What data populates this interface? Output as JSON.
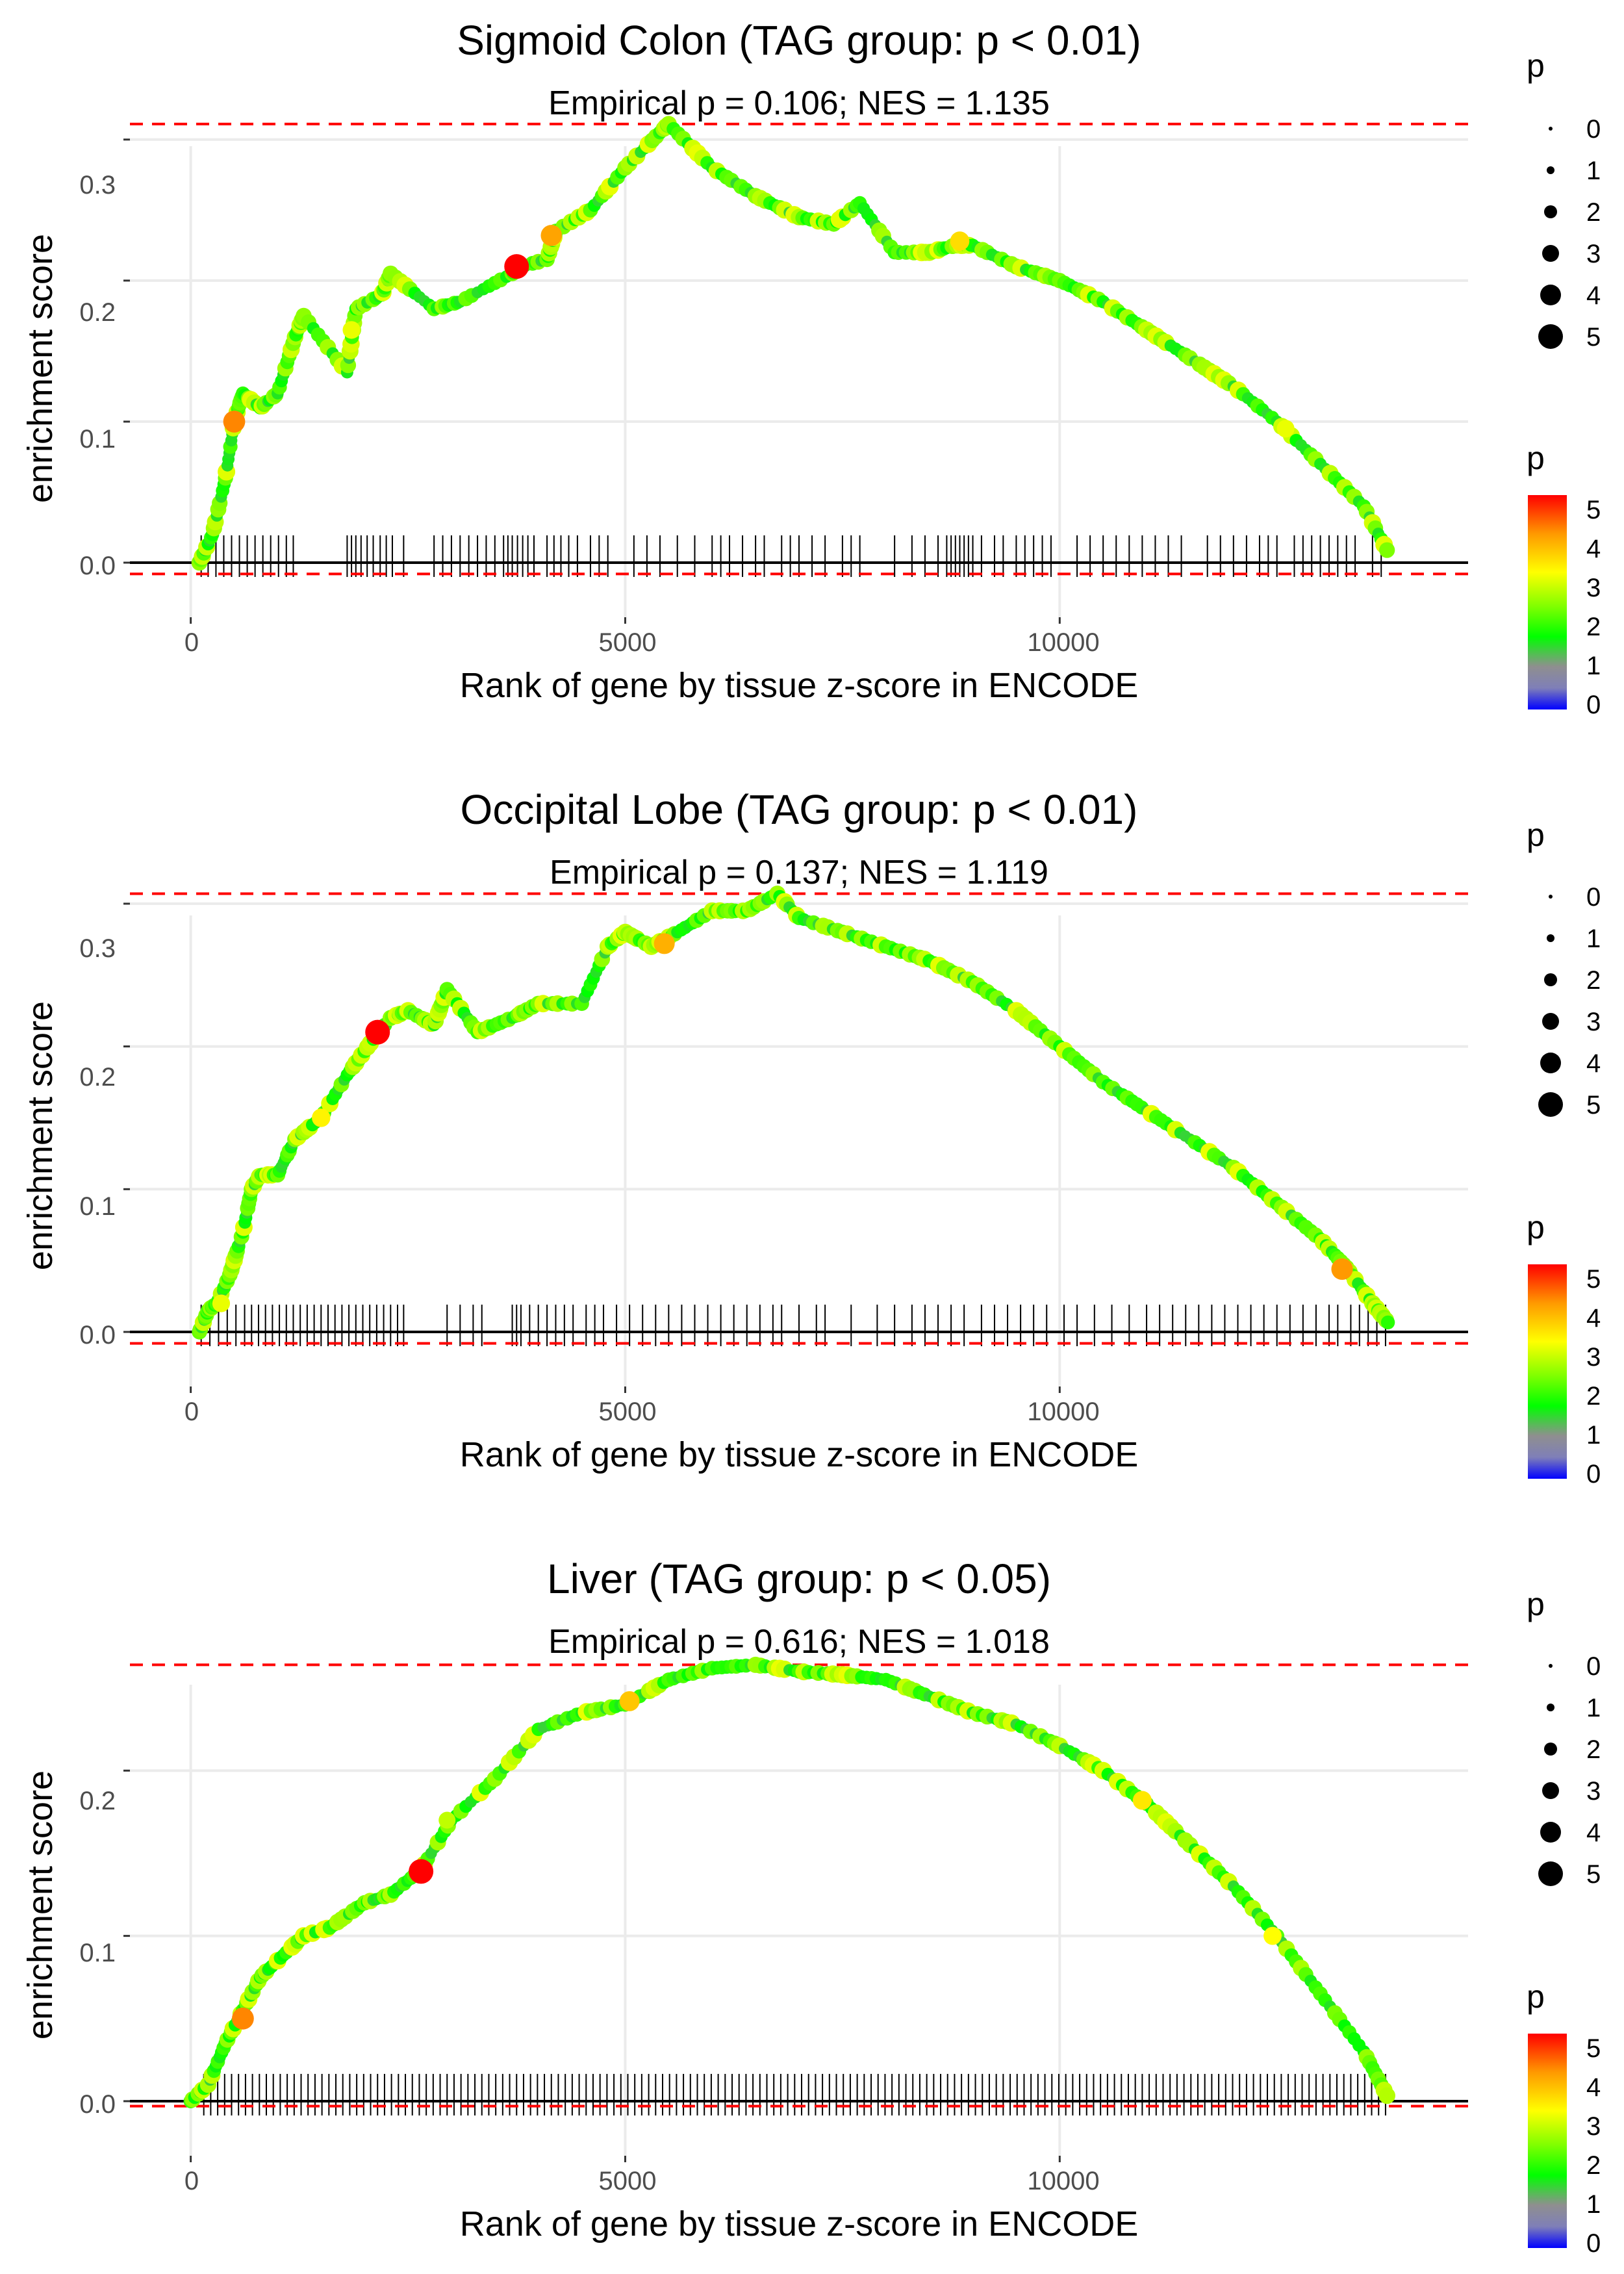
{
  "colors": {
    "threshold_line": "#FF0000",
    "baseline": "#000000",
    "curve": "#B4B4B4",
    "grid": "#EBEBEB",
    "gradient": [
      "#0000FF",
      "#7F7FB8",
      "#8F8F8F",
      "#00FF00",
      "#7FFF00",
      "#FFFF00",
      "#FF9900",
      "#FF0000"
    ]
  },
  "chart_data": [
    {
      "type": "line",
      "title": "Sigmoid Colon (TAG group: p < 0.01)",
      "subtitle": "Empirical p = 0.106; NES = 1.135",
      "xlabel": "Rank of gene by tissue z-score in ENCODE",
      "ylabel": "enrichment score",
      "xlim": [
        -700,
        14700
      ],
      "ylim": [
        -0.012,
        0.322
      ],
      "x_ticks": [
        0,
        5000,
        10000
      ],
      "x_tick_labels": [
        "0",
        "5000",
        "10000"
      ],
      "y_ticks": [
        0.0,
        0.1,
        0.2,
        0.3
      ],
      "y_tick_labels": [
        "0.0",
        "0.1",
        "0.2",
        "0.3"
      ],
      "max_es": 0.311,
      "min_es": -0.008,
      "es_curve": {
        "x": [
          100,
          250,
          400,
          500,
          600,
          800,
          1000,
          1200,
          1300,
          1800,
          1900,
          2200,
          2300,
          2800,
          3100,
          3700,
          3800,
          4100,
          4200,
          4600,
          5000,
          5400,
          5500,
          6000,
          6500,
          7000,
          7400,
          7700,
          8100,
          8500,
          8800,
          9000,
          9500,
          10000,
          10500,
          11000,
          11500,
          12000,
          12500,
          13000,
          13500,
          13800
        ],
        "y": [
          0.0,
          0.02,
          0.06,
          0.1,
          0.12,
          0.11,
          0.12,
          0.16,
          0.175,
          0.135,
          0.18,
          0.19,
          0.205,
          0.18,
          0.185,
          0.205,
          0.21,
          0.215,
          0.235,
          0.25,
          0.28,
          0.305,
          0.311,
          0.28,
          0.26,
          0.245,
          0.24,
          0.255,
          0.22,
          0.22,
          0.225,
          0.225,
          0.21,
          0.2,
          0.185,
          0.165,
          0.145,
          0.125,
          0.1,
          0.07,
          0.04,
          0.005
        ]
      },
      "gene_hits": {
        "x": [
          120,
          200,
          290,
          380,
          470,
          560,
          650,
          740,
          830,
          920,
          1010,
          1100,
          1180,
          1800,
          1850,
          1900,
          1960,
          2030,
          2100,
          2180,
          2250,
          2320,
          2450,
          2800,
          2900,
          3000,
          3100,
          3200,
          3300,
          3400,
          3500,
          3600,
          3650,
          3700,
          3760,
          3820,
          3880,
          3950,
          4100,
          4180,
          4260,
          4350,
          4450,
          4600,
          4700,
          4800,
          5100,
          5250,
          5400,
          5600,
          5800,
          6000,
          6100,
          6200,
          6350,
          6500,
          6600,
          6800,
          6900,
          7000,
          7150,
          7300,
          7500,
          7600,
          7700,
          8100,
          8300,
          8450,
          8600,
          8700,
          8750,
          8800,
          8850,
          8900,
          8950,
          9000,
          9100,
          9250,
          9350,
          9500,
          9600,
          9700,
          9800,
          9900,
          10200,
          10350,
          10500,
          10650,
          10800,
          10950,
          11100,
          11250,
          11400,
          11700,
          11850,
          12000,
          12150,
          12300,
          12400,
          12500,
          12700,
          12800,
          12900,
          13000,
          13100,
          13200,
          13300,
          13400,
          13600,
          13700
        ]
      },
      "highlight_points": [
        {
          "x": 500,
          "y": 0.1,
          "p": 4.3
        },
        {
          "x": 3750,
          "y": 0.21,
          "p": 5.0
        },
        {
          "x": 4150,
          "y": 0.232,
          "p": 4.1
        },
        {
          "x": 8850,
          "y": 0.228,
          "p": 3.6
        },
        {
          "x": 1850,
          "y": 0.165,
          "p": 3.2
        },
        {
          "x": 12600,
          "y": 0.095,
          "p": 3.2
        }
      ],
      "size_legend": {
        "title": "p",
        "labels": [
          "0",
          "1",
          "2",
          "3",
          "4",
          "5"
        ]
      },
      "color_legend": {
        "title": "p",
        "labels": [
          "5",
          "4",
          "3",
          "2",
          "1",
          "0"
        ]
      }
    },
    {
      "type": "line",
      "title": "Occipital Lobe (TAG group: p < 0.01)",
      "subtitle": "Empirical p = 0.137; NES = 1.119",
      "xlabel": "Rank of gene by tissue z-score in ENCODE",
      "ylabel": "enrichment score",
      "xlim": [
        -700,
        14700
      ],
      "ylim": [
        -0.012,
        0.318
      ],
      "x_ticks": [
        0,
        5000,
        10000
      ],
      "x_tick_labels": [
        "0",
        "5000",
        "10000"
      ],
      "y_ticks": [
        0.0,
        0.1,
        0.2,
        0.3
      ],
      "y_tick_labels": [
        "0.0",
        "0.1",
        "0.2",
        "0.3"
      ],
      "max_es": 0.307,
      "min_es": -0.008,
      "es_curve": {
        "x": [
          100,
          200,
          300,
          450,
          600,
          700,
          800,
          1000,
          1200,
          1500,
          1800,
          2100,
          2300,
          2500,
          2800,
          2950,
          3300,
          3700,
          4000,
          4500,
          4800,
          5000,
          5300,
          5600,
          6000,
          6400,
          6750,
          7000,
          7500,
          8000,
          8500,
          9000,
          9500,
          10000,
          10500,
          11000,
          11500,
          12000,
          12500,
          13000,
          13300,
          13600,
          13800
        ],
        "y": [
          0.0,
          0.015,
          0.02,
          0.04,
          0.07,
          0.1,
          0.11,
          0.11,
          0.135,
          0.15,
          0.18,
          0.205,
          0.22,
          0.225,
          0.215,
          0.24,
          0.21,
          0.22,
          0.23,
          0.23,
          0.27,
          0.28,
          0.27,
          0.28,
          0.295,
          0.295,
          0.307,
          0.29,
          0.28,
          0.27,
          0.26,
          0.245,
          0.225,
          0.2,
          0.175,
          0.155,
          0.135,
          0.115,
          0.09,
          0.065,
          0.045,
          0.02,
          0.005
        ]
      },
      "gene_hits": {
        "x": [
          120,
          220,
          320,
          420,
          520,
          620,
          700,
          780,
          860,
          940,
          1020,
          1100,
          1180,
          1260,
          1340,
          1420,
          1500,
          1580,
          1660,
          1740,
          1820,
          1900,
          1980,
          2060,
          2140,
          2220,
          2300,
          2380,
          2450,
          2950,
          3100,
          3250,
          3350,
          3700,
          3750,
          3800,
          3900,
          4000,
          4100,
          4200,
          4300,
          4400,
          4550,
          4650,
          4750,
          4900,
          5050,
          5200,
          5350,
          5500,
          5650,
          5800,
          5950,
          6100,
          6250,
          6400,
          6550,
          6700,
          6800,
          7000,
          7200,
          7300,
          7600,
          7900,
          8100,
          8300,
          8450,
          8600,
          8750,
          8900,
          9100,
          9250,
          9400,
          9550,
          9700,
          9850,
          10050,
          10200,
          10400,
          10600,
          10800,
          11000,
          11150,
          11300,
          11450,
          11600,
          11750,
          11900,
          12050,
          12200,
          12350,
          12500,
          12650,
          12800,
          12950,
          13100,
          13200,
          13350,
          13450,
          13550,
          13650,
          13750
        ]
      },
      "highlight_points": [
        {
          "x": 2150,
          "y": 0.21,
          "p": 5.0
        },
        {
          "x": 13250,
          "y": 0.044,
          "p": 4.2
        },
        {
          "x": 5450,
          "y": 0.272,
          "p": 4.0
        },
        {
          "x": 1500,
          "y": 0.15,
          "p": 3.4
        },
        {
          "x": 350,
          "y": 0.02,
          "p": 3.2
        }
      ],
      "size_legend": {
        "title": "p",
        "labels": [
          "0",
          "1",
          "2",
          "3",
          "4",
          "5"
        ]
      },
      "color_legend": {
        "title": "p",
        "labels": [
          "5",
          "4",
          "3",
          "2",
          "1",
          "0"
        ]
      }
    },
    {
      "type": "line",
      "title": "Liver (TAG group: p < 0.05)",
      "subtitle": "Empirical p = 0.616; NES = 1.018",
      "xlabel": "Rank of gene by tissue z-score in ENCODE",
      "ylabel": "enrichment score",
      "xlim": [
        -700,
        14700
      ],
      "ylim": [
        -0.01,
        0.275
      ],
      "x_ticks": [
        0,
        5000,
        10000
      ],
      "x_tick_labels": [
        "0",
        "5000",
        "10000"
      ],
      "y_ticks": [
        0.0,
        0.1,
        0.2
      ],
      "y_tick_labels": [
        "0.0",
        "0.1",
        "0.2"
      ],
      "max_es": 0.264,
      "min_es": -0.003,
      "es_curve": {
        "x": [
          0,
          200,
          400,
          600,
          800,
          1000,
          1300,
          1600,
          2000,
          2300,
          2650,
          3000,
          3500,
          4000,
          4500,
          5000,
          5500,
          6000,
          6500,
          7000,
          7500,
          8000,
          8500,
          9000,
          9500,
          10000,
          10500,
          11000,
          11500,
          12000,
          12500,
          13000,
          13500,
          13800
        ],
        "y": [
          0.0,
          0.01,
          0.035,
          0.055,
          0.075,
          0.085,
          0.1,
          0.105,
          0.12,
          0.125,
          0.14,
          0.17,
          0.195,
          0.225,
          0.235,
          0.24,
          0.255,
          0.262,
          0.264,
          0.26,
          0.258,
          0.255,
          0.245,
          0.235,
          0.228,
          0.215,
          0.2,
          0.18,
          0.155,
          0.13,
          0.1,
          0.065,
          0.03,
          0.0
        ]
      },
      "gene_hits": {
        "x": [
          150,
          230,
          310,
          390,
          470,
          550,
          630,
          710,
          790,
          870,
          950,
          1030,
          1110,
          1190,
          1270,
          1350,
          1430,
          1510,
          1590,
          1670,
          1750,
          1830,
          1910,
          1990,
          2070,
          2150,
          2230,
          2310,
          2390,
          2470,
          2550,
          2630,
          2710,
          2790,
          2870,
          2950,
          3030,
          3110,
          3190,
          3270,
          3350,
          3430,
          3510,
          3590,
          3670,
          3750,
          3830,
          3910,
          3990,
          4070,
          4150,
          4230,
          4310,
          4390,
          4470,
          4550,
          4630,
          4710,
          4790,
          4870,
          4950,
          5030,
          5110,
          5190,
          5270,
          5350,
          5430,
          5510,
          5590,
          5670,
          5750,
          5830,
          5910,
          5990,
          6070,
          6150,
          6230,
          6310,
          6390,
          6470,
          6550,
          6630,
          6710,
          6790,
          6870,
          6950,
          7030,
          7110,
          7190,
          7270,
          7350,
          7430,
          7510,
          7590,
          7670,
          7750,
          7830,
          7910,
          7990,
          8070,
          8150,
          8230,
          8310,
          8390,
          8470,
          8550,
          8630,
          8710,
          8790,
          8870,
          8950,
          9030,
          9110,
          9190,
          9270,
          9350,
          9430,
          9510,
          9590,
          9670,
          9750,
          9830,
          9910,
          9990,
          10070,
          10150,
          10230,
          10310,
          10390,
          10470,
          10550,
          10630,
          10710,
          10790,
          10870,
          10950,
          11030,
          11110,
          11190,
          11270,
          11350,
          11430,
          11510,
          11590,
          11670,
          11750,
          11830,
          11910,
          11990,
          12070,
          12150,
          12230,
          12310,
          12390,
          12470,
          12550,
          12630,
          12710,
          12790,
          12870,
          12950,
          13030,
          13110,
          13190,
          13270,
          13350,
          13430,
          13510,
          13590,
          13670,
          13750
        ]
      },
      "highlight_points": [
        {
          "x": 2650,
          "y": 0.139,
          "p": 5.0
        },
        {
          "x": 600,
          "y": 0.05,
          "p": 4.3
        },
        {
          "x": 5050,
          "y": 0.242,
          "p": 3.8
        },
        {
          "x": 10950,
          "y": 0.182,
          "p": 3.5
        },
        {
          "x": 12450,
          "y": 0.1,
          "p": 3.3
        },
        {
          "x": 2950,
          "y": 0.17,
          "p": 3.0
        }
      ],
      "size_legend": {
        "title": "p",
        "labels": [
          "0",
          "1",
          "2",
          "3",
          "4",
          "5"
        ]
      },
      "color_legend": {
        "title": "p",
        "labels": [
          "5",
          "4",
          "3",
          "2",
          "1",
          "0"
        ]
      }
    }
  ]
}
